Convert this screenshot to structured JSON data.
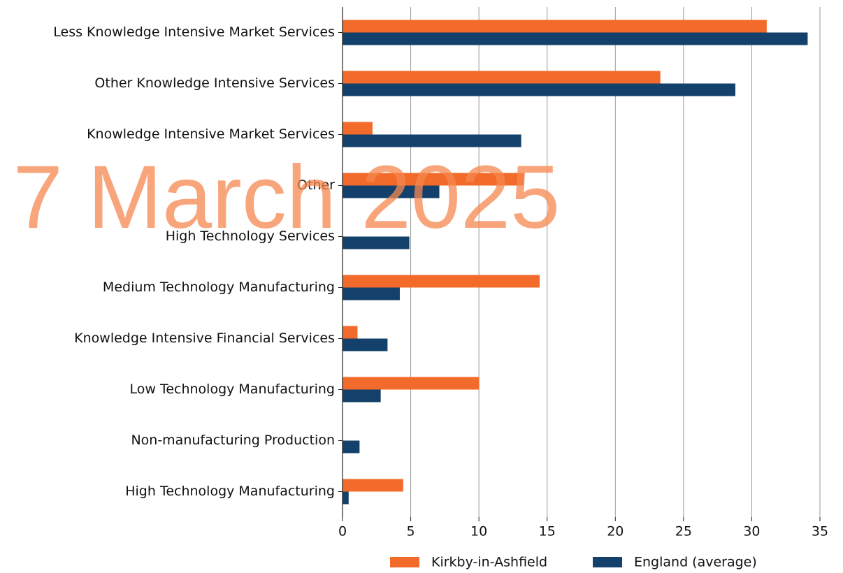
{
  "chart_data": {
    "type": "hbar",
    "categories": [
      "Less Knowledge Intensive Market Services",
      "Other Knowledge Intensive Services",
      "Knowledge Intensive Market Services",
      "Other",
      "High Technology Services",
      "Medium Technology Manufacturing",
      "Knowledge Intensive Financial Services",
      "Low Technology Manufacturing",
      "Non-manufacturing Production",
      "High Technology Manufacturing"
    ],
    "series": [
      {
        "name": "Kirkby-in-Ashfield",
        "color": "#f26b2a",
        "values": [
          31.1,
          23.3,
          2.2,
          13.3,
          0,
          14.45,
          1.1,
          10.0,
          0,
          4.45
        ]
      },
      {
        "name": "England (average)",
        "color": "#13416b",
        "values": [
          34.1,
          28.8,
          13.1,
          7.1,
          4.9,
          4.2,
          3.3,
          2.8,
          1.25,
          0.45
        ]
      }
    ],
    "xlim": [
      0,
      35
    ],
    "xticks": [
      0,
      5,
      10,
      15,
      20,
      25,
      30,
      35
    ],
    "grid": true,
    "legend": "bottom",
    "watermark": "7 March 2025"
  }
}
